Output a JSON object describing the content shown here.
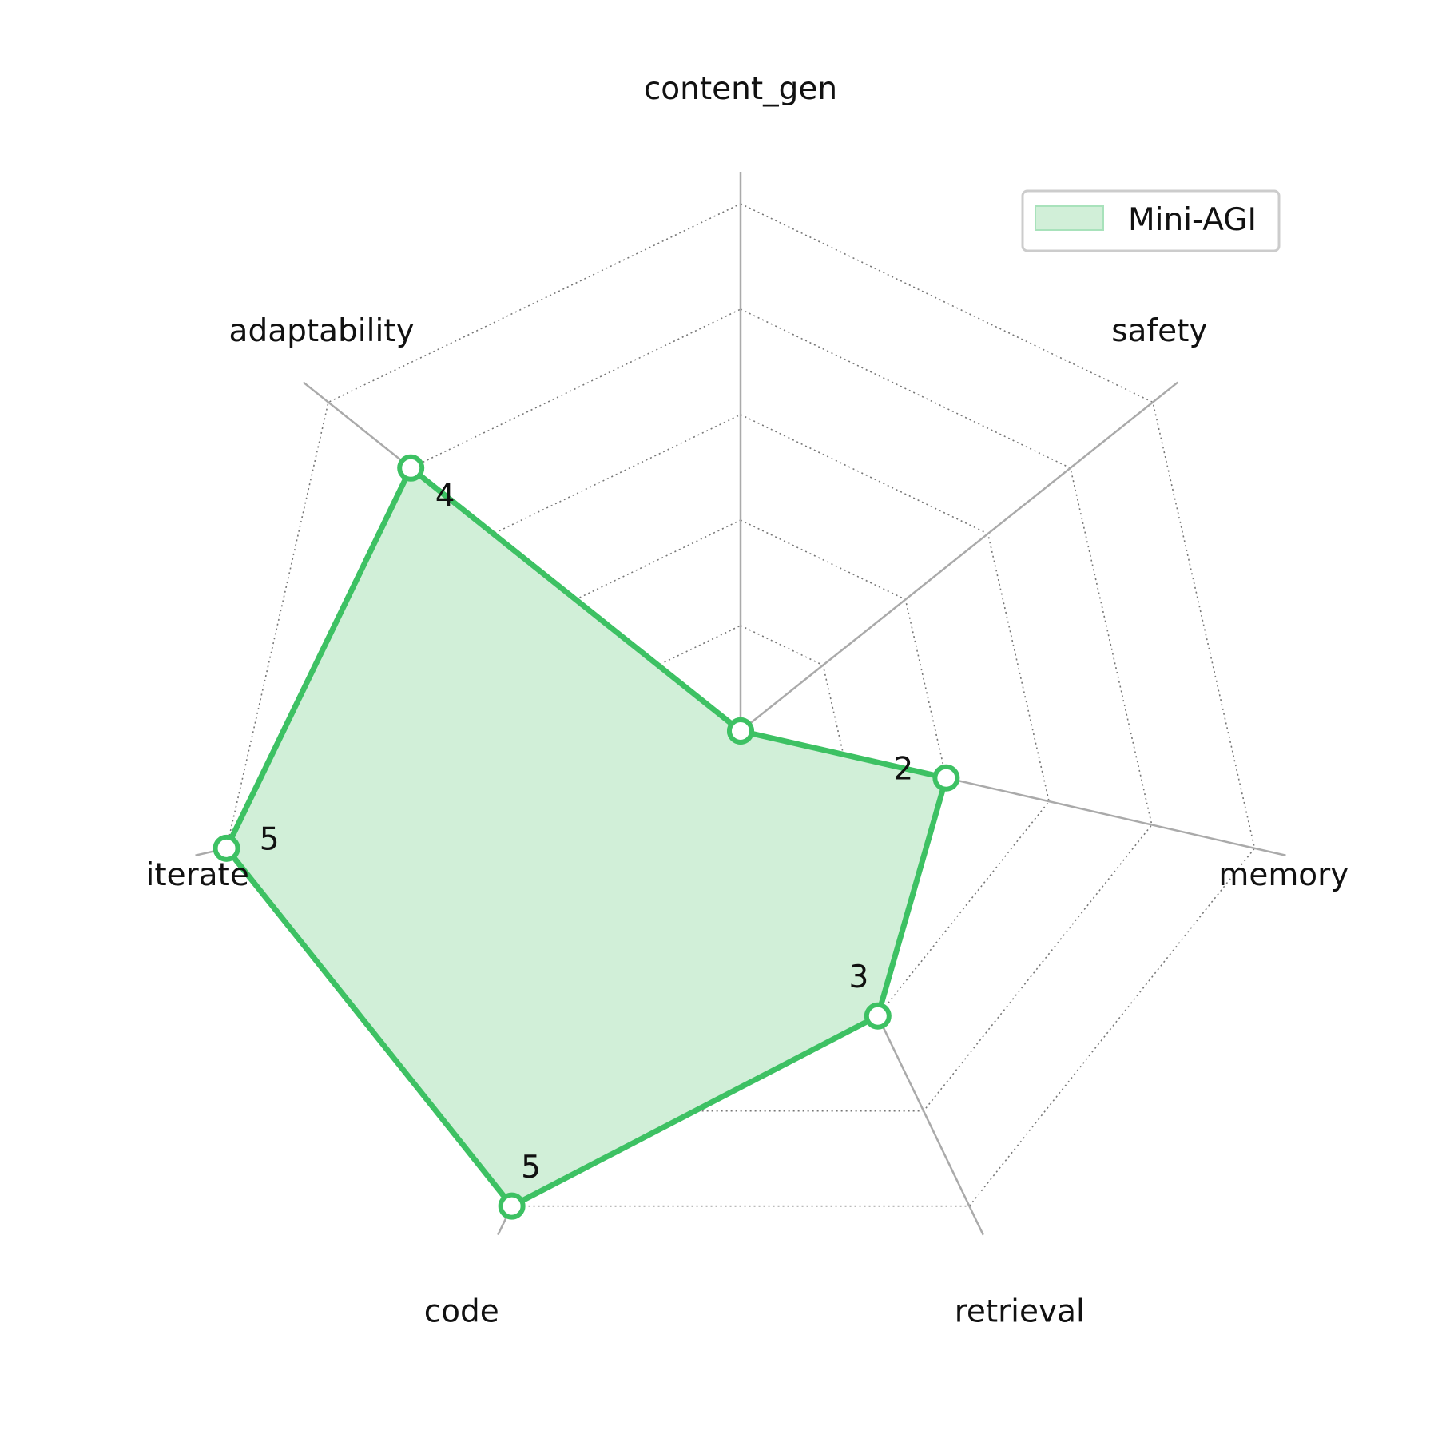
{
  "chart_data": {
    "type": "radar",
    "categories": [
      "content_gen",
      "safety",
      "memory",
      "retrieval",
      "code",
      "iterate",
      "adaptability"
    ],
    "series": [
      {
        "name": "Mini-AGI",
        "values": [
          0,
          0,
          2,
          3,
          5,
          5,
          4
        ],
        "color": "#3dc163",
        "fill_color": "#d1efd8"
      }
    ],
    "value_labels": [
      "",
      "",
      "2",
      "3",
      "5",
      "5",
      "4"
    ],
    "rlim": [
      0,
      5
    ],
    "grid": true,
    "legend_position": "top-right",
    "colors": {
      "axis_line": "#aaaaaa",
      "grid_line": "#777777",
      "legend_border": "#cccccc"
    }
  }
}
